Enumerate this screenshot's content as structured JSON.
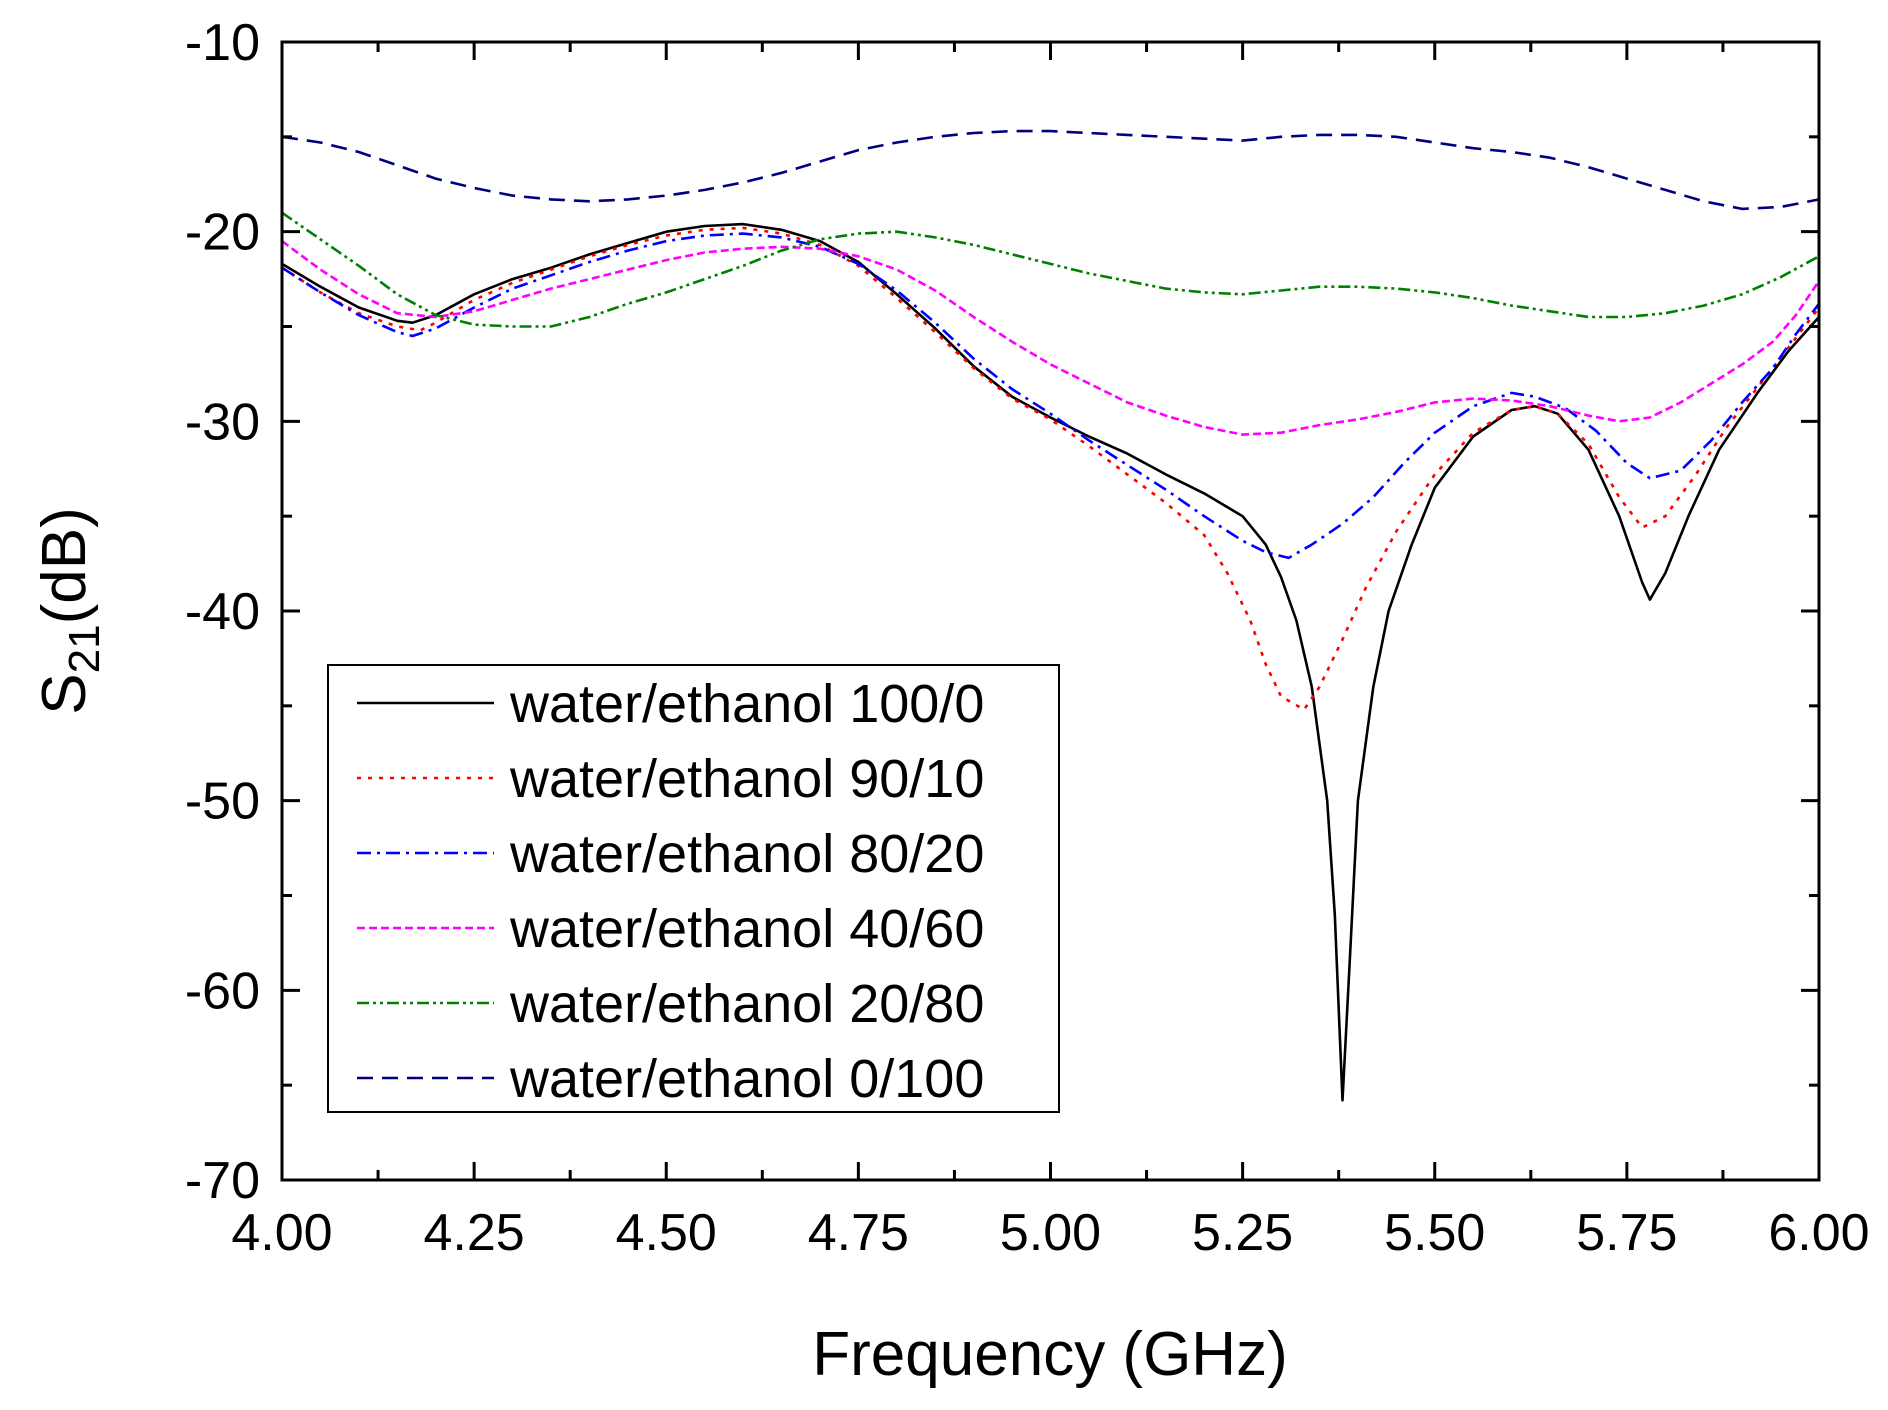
{
  "chart_data": {
    "type": "line",
    "title": "",
    "xlabel": "Frequency (GHz)",
    "ylabel_main": "S",
    "ylabel_sub": "21",
    "ylabel_rest": "(dB)",
    "xlim": [
      4.0,
      6.0
    ],
    "ylim": [
      -70,
      -10
    ],
    "xticks": [
      4.0,
      4.25,
      4.5,
      4.75,
      5.0,
      5.25,
      5.5,
      5.75,
      6.0
    ],
    "xtick_labels": [
      "4.00",
      "4.25",
      "4.50",
      "4.75",
      "5.00",
      "5.25",
      "5.50",
      "5.75",
      "6.00"
    ],
    "yticks": [
      -70,
      -60,
      -50,
      -40,
      -30,
      -20,
      -10
    ],
    "ytick_labels": [
      "-70",
      "-60",
      "-50",
      "-40",
      "-30",
      "-20",
      "-10"
    ],
    "legend_position": "lower-left",
    "series": [
      {
        "name": "water/ethanol 100/0",
        "color": "#000000",
        "dash": "solid",
        "points": [
          [
            4.0,
            -21.7
          ],
          [
            4.05,
            -22.9
          ],
          [
            4.1,
            -24.0
          ],
          [
            4.15,
            -24.7
          ],
          [
            4.17,
            -24.8
          ],
          [
            4.2,
            -24.4
          ],
          [
            4.25,
            -23.3
          ],
          [
            4.3,
            -22.5
          ],
          [
            4.35,
            -21.9
          ],
          [
            4.4,
            -21.2
          ],
          [
            4.45,
            -20.6
          ],
          [
            4.5,
            -20.0
          ],
          [
            4.55,
            -19.7
          ],
          [
            4.6,
            -19.6
          ],
          [
            4.65,
            -19.9
          ],
          [
            4.7,
            -20.5
          ],
          [
            4.75,
            -21.6
          ],
          [
            4.8,
            -23.3
          ],
          [
            4.85,
            -25.1
          ],
          [
            4.9,
            -27.1
          ],
          [
            4.95,
            -28.7
          ],
          [
            5.0,
            -29.8
          ],
          [
            5.05,
            -30.8
          ],
          [
            5.1,
            -31.7
          ],
          [
            5.15,
            -32.8
          ],
          [
            5.2,
            -33.8
          ],
          [
            5.25,
            -35.0
          ],
          [
            5.28,
            -36.5
          ],
          [
            5.3,
            -38.2
          ],
          [
            5.32,
            -40.5
          ],
          [
            5.34,
            -44.0
          ],
          [
            5.36,
            -50.0
          ],
          [
            5.37,
            -56.0
          ],
          [
            5.38,
            -65.8
          ],
          [
            5.39,
            -58.0
          ],
          [
            5.4,
            -50.0
          ],
          [
            5.42,
            -44.0
          ],
          [
            5.44,
            -40.0
          ],
          [
            5.47,
            -36.5
          ],
          [
            5.5,
            -33.5
          ],
          [
            5.55,
            -30.8
          ],
          [
            5.6,
            -29.4
          ],
          [
            5.63,
            -29.2
          ],
          [
            5.66,
            -29.6
          ],
          [
            5.7,
            -31.5
          ],
          [
            5.74,
            -35.0
          ],
          [
            5.77,
            -38.5
          ],
          [
            5.78,
            -39.4
          ],
          [
            5.8,
            -38.0
          ],
          [
            5.83,
            -35.0
          ],
          [
            5.87,
            -31.5
          ],
          [
            5.92,
            -28.5
          ],
          [
            5.96,
            -26.3
          ],
          [
            6.0,
            -24.5
          ]
        ]
      },
      {
        "name": "water/ethanol 90/10",
        "color": "#ff0000",
        "dash": "dot",
        "points": [
          [
            4.0,
            -21.9
          ],
          [
            4.05,
            -23.2
          ],
          [
            4.1,
            -24.3
          ],
          [
            4.15,
            -25.0
          ],
          [
            4.18,
            -25.2
          ],
          [
            4.2,
            -24.8
          ],
          [
            4.25,
            -23.6
          ],
          [
            4.3,
            -22.7
          ],
          [
            4.35,
            -22.0
          ],
          [
            4.4,
            -21.3
          ],
          [
            4.45,
            -20.7
          ],
          [
            4.5,
            -20.2
          ],
          [
            4.55,
            -19.9
          ],
          [
            4.6,
            -19.8
          ],
          [
            4.65,
            -20.1
          ],
          [
            4.7,
            -20.7
          ],
          [
            4.75,
            -21.8
          ],
          [
            4.8,
            -23.5
          ],
          [
            4.85,
            -25.3
          ],
          [
            4.9,
            -27.2
          ],
          [
            4.95,
            -28.8
          ],
          [
            5.0,
            -29.9
          ],
          [
            5.05,
            -31.3
          ],
          [
            5.1,
            -32.8
          ],
          [
            5.15,
            -34.3
          ],
          [
            5.2,
            -36.0
          ],
          [
            5.23,
            -38.0
          ],
          [
            5.26,
            -40.5
          ],
          [
            5.28,
            -42.8
          ],
          [
            5.3,
            -44.5
          ],
          [
            5.33,
            -45.2
          ],
          [
            5.35,
            -44.0
          ],
          [
            5.38,
            -41.5
          ],
          [
            5.41,
            -38.8
          ],
          [
            5.45,
            -35.8
          ],
          [
            5.5,
            -32.8
          ],
          [
            5.55,
            -30.6
          ],
          [
            5.6,
            -29.4
          ],
          [
            5.63,
            -29.2
          ],
          [
            5.66,
            -29.6
          ],
          [
            5.7,
            -31.2
          ],
          [
            5.74,
            -34.0
          ],
          [
            5.77,
            -35.6
          ],
          [
            5.8,
            -35.0
          ],
          [
            5.84,
            -32.8
          ],
          [
            5.88,
            -30.3
          ],
          [
            5.93,
            -27.7
          ],
          [
            5.97,
            -25.6
          ],
          [
            6.0,
            -24.0
          ]
        ]
      },
      {
        "name": "water/ethanol 80/20",
        "color": "#0000ff",
        "dash": "dashdot",
        "points": [
          [
            4.0,
            -21.9
          ],
          [
            4.05,
            -23.2
          ],
          [
            4.1,
            -24.4
          ],
          [
            4.15,
            -25.3
          ],
          [
            4.17,
            -25.5
          ],
          [
            4.2,
            -25.1
          ],
          [
            4.25,
            -24.0
          ],
          [
            4.3,
            -23.0
          ],
          [
            4.35,
            -22.3
          ],
          [
            4.4,
            -21.6
          ],
          [
            4.45,
            -21.0
          ],
          [
            4.5,
            -20.5
          ],
          [
            4.55,
            -20.2
          ],
          [
            4.6,
            -20.1
          ],
          [
            4.65,
            -20.3
          ],
          [
            4.7,
            -20.8
          ],
          [
            4.75,
            -21.7
          ],
          [
            4.8,
            -23.1
          ],
          [
            4.85,
            -24.8
          ],
          [
            4.9,
            -26.7
          ],
          [
            4.95,
            -28.3
          ],
          [
            5.0,
            -29.6
          ],
          [
            5.05,
            -31.0
          ],
          [
            5.1,
            -32.3
          ],
          [
            5.15,
            -33.6
          ],
          [
            5.2,
            -35.0
          ],
          [
            5.25,
            -36.3
          ],
          [
            5.28,
            -36.9
          ],
          [
            5.31,
            -37.2
          ],
          [
            5.34,
            -36.5
          ],
          [
            5.38,
            -35.4
          ],
          [
            5.42,
            -34.0
          ],
          [
            5.46,
            -32.2
          ],
          [
            5.5,
            -30.6
          ],
          [
            5.55,
            -29.2
          ],
          [
            5.6,
            -28.5
          ],
          [
            5.63,
            -28.7
          ],
          [
            5.67,
            -29.3
          ],
          [
            5.71,
            -30.5
          ],
          [
            5.75,
            -32.2
          ],
          [
            5.78,
            -33.0
          ],
          [
            5.82,
            -32.6
          ],
          [
            5.86,
            -31.0
          ],
          [
            5.9,
            -29.0
          ],
          [
            5.94,
            -27.2
          ],
          [
            5.97,
            -25.4
          ],
          [
            6.0,
            -23.8
          ]
        ]
      },
      {
        "name": "water/ethanol 40/60",
        "color": "#ff00ff",
        "dash": "dash-short",
        "points": [
          [
            4.0,
            -20.5
          ],
          [
            4.05,
            -22.0
          ],
          [
            4.1,
            -23.3
          ],
          [
            4.15,
            -24.3
          ],
          [
            4.2,
            -24.5
          ],
          [
            4.25,
            -24.2
          ],
          [
            4.3,
            -23.6
          ],
          [
            4.35,
            -23.0
          ],
          [
            4.4,
            -22.5
          ],
          [
            4.45,
            -22.0
          ],
          [
            4.5,
            -21.5
          ],
          [
            4.55,
            -21.1
          ],
          [
            4.6,
            -20.9
          ],
          [
            4.65,
            -20.8
          ],
          [
            4.7,
            -20.9
          ],
          [
            4.75,
            -21.3
          ],
          [
            4.8,
            -22.0
          ],
          [
            4.85,
            -23.1
          ],
          [
            4.9,
            -24.5
          ],
          [
            4.95,
            -25.8
          ],
          [
            5.0,
            -27.0
          ],
          [
            5.05,
            -28.0
          ],
          [
            5.1,
            -29.0
          ],
          [
            5.15,
            -29.7
          ],
          [
            5.2,
            -30.3
          ],
          [
            5.25,
            -30.7
          ],
          [
            5.3,
            -30.6
          ],
          [
            5.35,
            -30.2
          ],
          [
            5.4,
            -29.9
          ],
          [
            5.45,
            -29.5
          ],
          [
            5.5,
            -29.0
          ],
          [
            5.55,
            -28.8
          ],
          [
            5.6,
            -28.9
          ],
          [
            5.65,
            -29.2
          ],
          [
            5.7,
            -29.7
          ],
          [
            5.74,
            -30.0
          ],
          [
            5.78,
            -29.8
          ],
          [
            5.82,
            -29.0
          ],
          [
            5.86,
            -28.0
          ],
          [
            5.9,
            -27.0
          ],
          [
            5.94,
            -25.8
          ],
          [
            5.97,
            -24.4
          ],
          [
            6.0,
            -22.6
          ]
        ]
      },
      {
        "name": "water/ethanol 20/80",
        "color": "#008000",
        "dash": "dashdotdot",
        "points": [
          [
            4.0,
            -19.0
          ],
          [
            4.05,
            -20.4
          ],
          [
            4.1,
            -21.8
          ],
          [
            4.15,
            -23.3
          ],
          [
            4.2,
            -24.4
          ],
          [
            4.25,
            -24.9
          ],
          [
            4.3,
            -25.0
          ],
          [
            4.35,
            -25.0
          ],
          [
            4.4,
            -24.5
          ],
          [
            4.45,
            -23.8
          ],
          [
            4.5,
            -23.2
          ],
          [
            4.55,
            -22.5
          ],
          [
            4.6,
            -21.8
          ],
          [
            4.65,
            -21.0
          ],
          [
            4.7,
            -20.4
          ],
          [
            4.75,
            -20.1
          ],
          [
            4.8,
            -20.0
          ],
          [
            4.85,
            -20.3
          ],
          [
            4.9,
            -20.7
          ],
          [
            4.95,
            -21.2
          ],
          [
            5.0,
            -21.7
          ],
          [
            5.05,
            -22.2
          ],
          [
            5.1,
            -22.6
          ],
          [
            5.15,
            -23.0
          ],
          [
            5.2,
            -23.2
          ],
          [
            5.25,
            -23.3
          ],
          [
            5.3,
            -23.1
          ],
          [
            5.35,
            -22.9
          ],
          [
            5.4,
            -22.9
          ],
          [
            5.45,
            -23.0
          ],
          [
            5.5,
            -23.2
          ],
          [
            5.55,
            -23.5
          ],
          [
            5.6,
            -23.9
          ],
          [
            5.65,
            -24.2
          ],
          [
            5.7,
            -24.5
          ],
          [
            5.75,
            -24.5
          ],
          [
            5.8,
            -24.3
          ],
          [
            5.85,
            -23.9
          ],
          [
            5.9,
            -23.3
          ],
          [
            5.95,
            -22.4
          ],
          [
            6.0,
            -21.3
          ]
        ]
      },
      {
        "name": "water/ethanol 0/100",
        "color": "#000080",
        "dash": "dash",
        "points": [
          [
            4.0,
            -15.0
          ],
          [
            4.05,
            -15.3
          ],
          [
            4.1,
            -15.8
          ],
          [
            4.15,
            -16.5
          ],
          [
            4.2,
            -17.2
          ],
          [
            4.25,
            -17.7
          ],
          [
            4.3,
            -18.1
          ],
          [
            4.35,
            -18.3
          ],
          [
            4.4,
            -18.4
          ],
          [
            4.45,
            -18.3
          ],
          [
            4.5,
            -18.1
          ],
          [
            4.55,
            -17.8
          ],
          [
            4.6,
            -17.4
          ],
          [
            4.65,
            -16.9
          ],
          [
            4.7,
            -16.3
          ],
          [
            4.75,
            -15.7
          ],
          [
            4.8,
            -15.3
          ],
          [
            4.85,
            -15.0
          ],
          [
            4.9,
            -14.8
          ],
          [
            4.95,
            -14.7
          ],
          [
            5.0,
            -14.7
          ],
          [
            5.05,
            -14.8
          ],
          [
            5.1,
            -14.9
          ],
          [
            5.15,
            -15.0
          ],
          [
            5.2,
            -15.1
          ],
          [
            5.25,
            -15.2
          ],
          [
            5.3,
            -15.0
          ],
          [
            5.35,
            -14.9
          ],
          [
            5.4,
            -14.9
          ],
          [
            5.45,
            -15.0
          ],
          [
            5.5,
            -15.3
          ],
          [
            5.55,
            -15.6
          ],
          [
            5.6,
            -15.8
          ],
          [
            5.65,
            -16.1
          ],
          [
            5.7,
            -16.6
          ],
          [
            5.75,
            -17.2
          ],
          [
            5.8,
            -17.8
          ],
          [
            5.85,
            -18.4
          ],
          [
            5.9,
            -18.8
          ],
          [
            5.95,
            -18.7
          ],
          [
            6.0,
            -18.3
          ]
        ]
      }
    ]
  }
}
